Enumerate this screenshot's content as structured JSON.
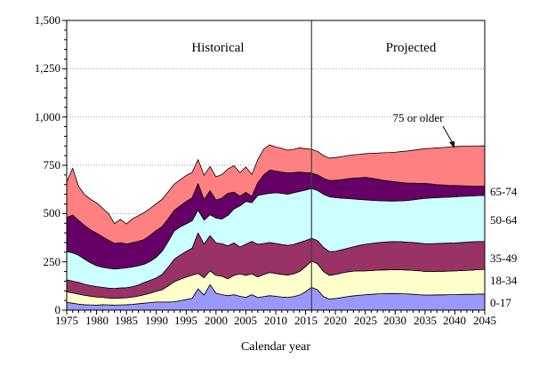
{
  "chart_data": {
    "type": "area",
    "stacked": true,
    "xlabel": "Calendar year",
    "ylabel": "",
    "x_range": [
      1975,
      2045
    ],
    "x_step": 1,
    "ylim": [
      0,
      1500
    ],
    "ytick_step": 250,
    "ytick_minor_step": 50,
    "grid": "horizontal-dotted",
    "ytick_labels": [
      "0",
      "250",
      "500",
      "750",
      "1,000",
      "1,250",
      "1,500"
    ],
    "xtick_labels": [
      "1975",
      "1980",
      "1985",
      "1990",
      "1995",
      "2000",
      "2005",
      "2010",
      "2015",
      "2020",
      "2025",
      "2030",
      "2035",
      "2040",
      "2045"
    ],
    "annotations": {
      "historical": "Historical",
      "projected": "Projected",
      "divider_year": 2016,
      "callout": "75 or older"
    },
    "axis_color": "#000000",
    "gridline_color": "#999999",
    "divider_color": "#404040",
    "series": [
      {
        "name": "0-17",
        "color": "#9999FF",
        "values": [
          41,
          36,
          31,
          28,
          27,
          26,
          28,
          27,
          26,
          27,
          28,
          30,
          33,
          36,
          39,
          42,
          42,
          42,
          43,
          49,
          55,
          61,
          110,
          78,
          132,
          88,
          80,
          75,
          80,
          72,
          66,
          80,
          65,
          70,
          75,
          72,
          68,
          66,
          70,
          78,
          95,
          118,
          105,
          70,
          57,
          60,
          65,
          70,
          74,
          77,
          80,
          82,
          84,
          85,
          86,
          86,
          85,
          84,
          82,
          80,
          78,
          78,
          79,
          79,
          80,
          80,
          81,
          82,
          82,
          83,
          83
        ]
      },
      {
        "name": "18-34",
        "color": "#FFFFCC",
        "values": [
          54,
          53,
          52,
          49,
          45,
          42,
          38,
          36,
          35,
          36,
          36,
          38,
          40,
          44,
          49,
          56,
          64,
          84,
          104,
          111,
          116,
          120,
          80,
          90,
          72,
          92,
          96,
          87,
          100,
          116,
          114,
          108,
          107,
          115,
          120,
          118,
          117,
          116,
          118,
          122,
          130,
          137,
          135,
          130,
          123,
          125,
          127,
          128,
          128,
          126,
          123,
          123,
          123,
          123,
          123,
          124,
          124,
          124,
          124,
          124,
          122,
          122,
          122,
          122,
          122,
          123,
          124,
          124,
          126,
          127,
          128
        ]
      },
      {
        "name": "35-49",
        "color": "#993366",
        "values": [
          62,
          61,
          60,
          57,
          55,
          54,
          52,
          51,
          51,
          52,
          52,
          53,
          57,
          63,
          67,
          69,
          80,
          97,
          116,
          125,
          133,
          140,
          210,
          174,
          182,
          168,
          168,
          171,
          168,
          139,
          161,
          168,
          169,
          160,
          155,
          155,
          155,
          153,
          152,
          150,
          135,
          117,
          120,
          125,
          123,
          120,
          120,
          122,
          126,
          132,
          138,
          140,
          142,
          144,
          145,
          145,
          145,
          144,
          144,
          143,
          144,
          144,
          144,
          145,
          145,
          145,
          145,
          146,
          146,
          145,
          145
        ]
      },
      {
        "name": "50-64",
        "color": "#CCFFFF",
        "values": [
          146,
          147,
          141,
          130,
          118,
          108,
          104,
          103,
          101,
          101,
          103,
          103,
          100,
          95,
          98,
          107,
          120,
          133,
          147,
          146,
          143,
          142,
          118,
          124,
          108,
          129,
          128,
          158,
          176,
          213,
          222,
          201,
          253,
          255,
          255,
          263,
          265,
          265,
          268,
          265,
          262,
          258,
          260,
          275,
          284,
          278,
          268,
          258,
          248,
          238,
          230,
          224,
          218,
          214,
          211,
          210,
          212,
          216,
          221,
          228,
          235,
          237,
          238,
          238,
          238,
          239,
          239,
          238,
          238,
          238,
          238
        ]
      },
      {
        "name": "65-74",
        "color": "#660066",
        "values": [
          176,
          195,
          180,
          174,
          170,
          168,
          158,
          145,
          132,
          133,
          123,
          125,
          126,
          128,
          135,
          138,
          127,
          117,
          106,
          109,
          115,
          118,
          137,
          106,
          124,
          93,
          108,
          114,
          87,
          49,
          47,
          31,
          66,
          100,
          120,
          112,
          110,
          110,
          104,
          100,
          90,
          80,
          80,
          82,
          84,
          89,
          95,
          102,
          107,
          112,
          116,
          114,
          111,
          106,
          103,
          99,
          95,
          90,
          86,
          81,
          77,
          72,
          67,
          64,
          61,
          58,
          55,
          53,
          50,
          48,
          47
        ]
      },
      {
        "name": "75 or older",
        "color": "#FF8080",
        "values": [
          185,
          243,
          176,
          160,
          159,
          158,
          148,
          138,
          103,
          121,
          104,
          124,
          133,
          140,
          139,
          139,
          141,
          140,
          136,
          135,
          135,
          132,
          125,
          126,
          126,
          120,
          122,
          126,
          137,
          123,
          131,
          115,
          120,
          135,
          131,
          125,
          123,
          118,
          121,
          125,
          124,
          123,
          122,
          118,
          116,
          118,
          120,
          120,
          121,
          122,
          123,
          129,
          135,
          143,
          148,
          154,
          160,
          166,
          171,
          176,
          180,
          185,
          190,
          194,
          199,
          202,
          204,
          206,
          208,
          209,
          210
        ]
      }
    ]
  }
}
